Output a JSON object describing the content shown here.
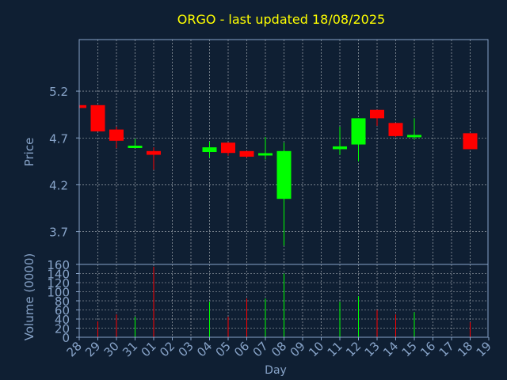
{
  "colors": {
    "background": "#0f1f33",
    "title": "#ffff00",
    "axis_text": "#87a3c8",
    "grid": "#ffffff",
    "up": "#00ff00",
    "down": "#ff0000"
  },
  "chart_data": [
    {
      "type": "candlestick",
      "title": "ORGO - last updated 18/08/2025",
      "ylabel": "Price",
      "ylim": [
        3.35,
        5.75
      ],
      "yticks": [
        "5.2",
        "4.7",
        "4.2",
        "3.7"
      ],
      "ytick_values": [
        5.2,
        4.7,
        4.2,
        3.7
      ],
      "grid": true,
      "x": [
        "28",
        "29",
        "30",
        "31",
        "01",
        "02",
        "03",
        "04",
        "05",
        "06",
        "07",
        "08",
        "09",
        "10",
        "11",
        "12",
        "13",
        "14",
        "15",
        "16",
        "17",
        "18",
        "19"
      ],
      "candles": [
        {
          "x": "28",
          "open": 5.05,
          "high": 5.05,
          "low": 5.01,
          "close": 5.02
        },
        {
          "x": "29",
          "open": 5.05,
          "high": 5.05,
          "low": 4.77,
          "close": 4.77
        },
        {
          "x": "30",
          "open": 4.79,
          "high": 4.82,
          "low": 4.59,
          "close": 4.67
        },
        {
          "x": "31",
          "open": 4.6,
          "high": 4.69,
          "low": 4.6,
          "close": 4.61
        },
        {
          "x": "01",
          "open": 4.56,
          "high": 4.6,
          "low": 4.36,
          "close": 4.52
        },
        {
          "x": "04",
          "open": 4.55,
          "high": 4.66,
          "low": 4.49,
          "close": 4.6
        },
        {
          "x": "05",
          "open": 4.65,
          "high": 4.65,
          "low": 4.51,
          "close": 4.54
        },
        {
          "x": "06",
          "open": 4.56,
          "high": 4.56,
          "low": 4.49,
          "close": 4.5
        },
        {
          "x": "07",
          "open": 4.52,
          "high": 4.71,
          "low": 4.47,
          "close": 4.53
        },
        {
          "x": "08",
          "open": 4.05,
          "high": 4.65,
          "low": 3.55,
          "close": 4.56
        },
        {
          "x": "11",
          "open": 4.58,
          "high": 4.82,
          "low": 4.52,
          "close": 4.61
        },
        {
          "x": "12",
          "open": 4.63,
          "high": 4.91,
          "low": 4.45,
          "close": 4.91
        },
        {
          "x": "13",
          "open": 5.0,
          "high": 5.0,
          "low": 4.83,
          "close": 4.91
        },
        {
          "x": "14",
          "open": 4.86,
          "high": 4.86,
          "low": 4.71,
          "close": 4.72
        },
        {
          "x": "15",
          "open": 4.71,
          "high": 4.91,
          "low": 4.68,
          "close": 4.73
        },
        {
          "x": "18",
          "open": 4.75,
          "high": 4.75,
          "low": 4.58,
          "close": 4.58
        }
      ]
    },
    {
      "type": "bar",
      "ylabel": "Volume (0000)",
      "xlabel": "Day",
      "ylim": [
        0,
        160
      ],
      "yticks": [
        "160",
        "140",
        "120",
        "100",
        "80",
        "60",
        "40",
        "20",
        "0"
      ],
      "ytick_values": [
        160,
        140,
        120,
        100,
        80,
        60,
        40,
        20,
        0
      ],
      "grid": true,
      "x": [
        "28",
        "29",
        "30",
        "31",
        "01",
        "02",
        "03",
        "04",
        "05",
        "06",
        "07",
        "08",
        "09",
        "10",
        "11",
        "12",
        "13",
        "14",
        "15",
        "16",
        "17",
        "18",
        "19"
      ],
      "bars": [
        {
          "x": "28",
          "value": 0,
          "dir": "down"
        },
        {
          "x": "29",
          "value": 35,
          "dir": "down"
        },
        {
          "x": "30",
          "value": 50,
          "dir": "down"
        },
        {
          "x": "31",
          "value": 45,
          "dir": "up"
        },
        {
          "x": "01",
          "value": 155,
          "dir": "down"
        },
        {
          "x": "04",
          "value": 78,
          "dir": "up"
        },
        {
          "x": "05",
          "value": 45,
          "dir": "down"
        },
        {
          "x": "06",
          "value": 85,
          "dir": "down"
        },
        {
          "x": "07",
          "value": 85,
          "dir": "up"
        },
        {
          "x": "08",
          "value": 140,
          "dir": "up"
        },
        {
          "x": "11",
          "value": 78,
          "dir": "up"
        },
        {
          "x": "12",
          "value": 90,
          "dir": "up"
        },
        {
          "x": "13",
          "value": 60,
          "dir": "down"
        },
        {
          "x": "14",
          "value": 50,
          "dir": "down"
        },
        {
          "x": "15",
          "value": 55,
          "dir": "up"
        },
        {
          "x": "18",
          "value": 33,
          "dir": "down"
        }
      ]
    }
  ]
}
